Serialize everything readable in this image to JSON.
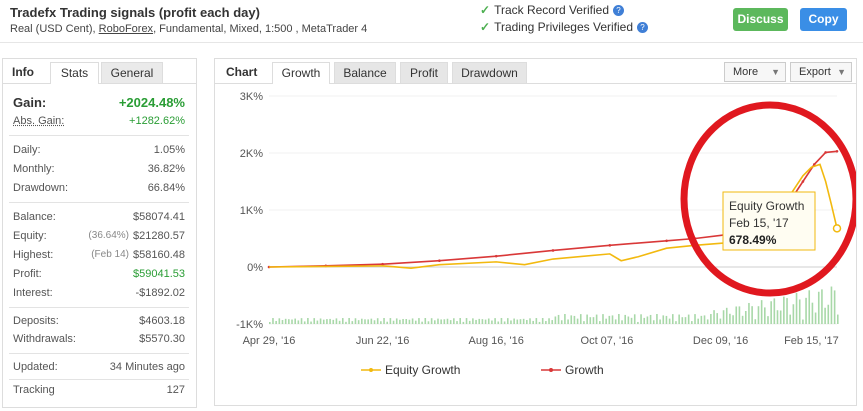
{
  "header": {
    "title": "Tradefx Trading signals (profit each day)",
    "subtitle_prefix": "Real (USD Cent), ",
    "subtitle_broker": "RoboForex",
    "subtitle_suffix": ", Fundamental, Mixed, 1:500 , MetaTrader 4",
    "verified_1": "Track Record Verified",
    "verified_2": "Trading Privileges Verified",
    "help_glyph": "?",
    "check_glyph": "✓",
    "discuss_label": "Discuss",
    "copy_label": "Copy"
  },
  "stats_tabs": {
    "title": "Info",
    "stats": "Stats",
    "general": "General"
  },
  "stats": {
    "gain_label": "Gain:",
    "gain_value": "+2024.48%",
    "abs_gain_label": "Abs. Gain:",
    "abs_gain_value": "+1282.62%",
    "daily_label": "Daily:",
    "daily_value": "1.05%",
    "monthly_label": "Monthly:",
    "monthly_value": "36.82%",
    "drawdown_label": "Drawdown:",
    "drawdown_value": "66.84%",
    "balance_label": "Balance:",
    "balance_value": "$58074.41",
    "equity_label": "Equity:",
    "equity_sub": "(36.64%)",
    "equity_value": "$21280.57",
    "highest_label": "Highest:",
    "highest_sub": "(Feb 14)",
    "highest_value": "$58160.48",
    "profit_label": "Profit:",
    "profit_value": "$59041.53",
    "interest_label": "Interest:",
    "interest_value": "-$1892.02",
    "deposits_label": "Deposits:",
    "deposits_value": "$4603.18",
    "withdrawals_label": "Withdrawals:",
    "withdrawals_value": "$5570.30",
    "updated_label": "Updated:",
    "updated_value": "34 Minutes ago",
    "tracking_label": "Tracking",
    "tracking_value": "127"
  },
  "chart_tabs": {
    "title": "Chart",
    "growth": "Growth",
    "balance": "Balance",
    "profit": "Profit",
    "drawdown": "Drawdown",
    "more": "More",
    "export": "Export",
    "caret": "▼"
  },
  "colors": {
    "equity": "#f2b90f",
    "growth": "#d93838",
    "volume": "#a8d8a8",
    "circle": "#e0181f"
  },
  "chart_data": {
    "type": "line",
    "ylim": [
      -1000,
      3000
    ],
    "y_ticks": [
      3000,
      2000,
      1000,
      0,
      -1000
    ],
    "y_tick_labels": [
      "3K%",
      "2K%",
      "1K%",
      "0%",
      "-1K%"
    ],
    "x_tick_labels": [
      "Apr 29, '16",
      "Jun 22, '16",
      "Aug 16, '16",
      "Oct 07, '16",
      "Dec 09, '16",
      "Feb 15, '17"
    ],
    "x_tick_pos": [
      0,
      0.2,
      0.4,
      0.595,
      0.795,
      0.955
    ],
    "x_range": [
      0,
      1
    ],
    "legend": [
      "Equity Growth",
      "Growth"
    ],
    "legend_position": "bottom",
    "series": [
      {
        "name": "Growth",
        "x": [
          0,
          0.1,
          0.2,
          0.3,
          0.4,
          0.5,
          0.6,
          0.7,
          0.75,
          0.8,
          0.84,
          0.87,
          0.9,
          0.92,
          0.94,
          0.96,
          0.98,
          1.0
        ],
        "y": [
          0,
          20,
          50,
          110,
          190,
          290,
          380,
          460,
          500,
          560,
          640,
          760,
          950,
          1200,
          1500,
          1800,
          2010,
          2030
        ]
      },
      {
        "name": "Equity Growth",
        "x": [
          0,
          0.1,
          0.2,
          0.25,
          0.3,
          0.4,
          0.45,
          0.5,
          0.6,
          0.62,
          0.65,
          0.7,
          0.75,
          0.8,
          0.84,
          0.87,
          0.9,
          0.92,
          0.94,
          0.955,
          0.97,
          0.98,
          0.99,
          1.0
        ],
        "y": [
          0,
          10,
          20,
          -20,
          40,
          90,
          40,
          140,
          230,
          110,
          180,
          330,
          380,
          420,
          560,
          700,
          900,
          1300,
          1600,
          1750,
          1800,
          1500,
          1100,
          678.49
        ]
      }
    ],
    "tooltip": {
      "series": "Equity Growth",
      "date": "Feb 15, '17",
      "value": "678.49%"
    }
  }
}
